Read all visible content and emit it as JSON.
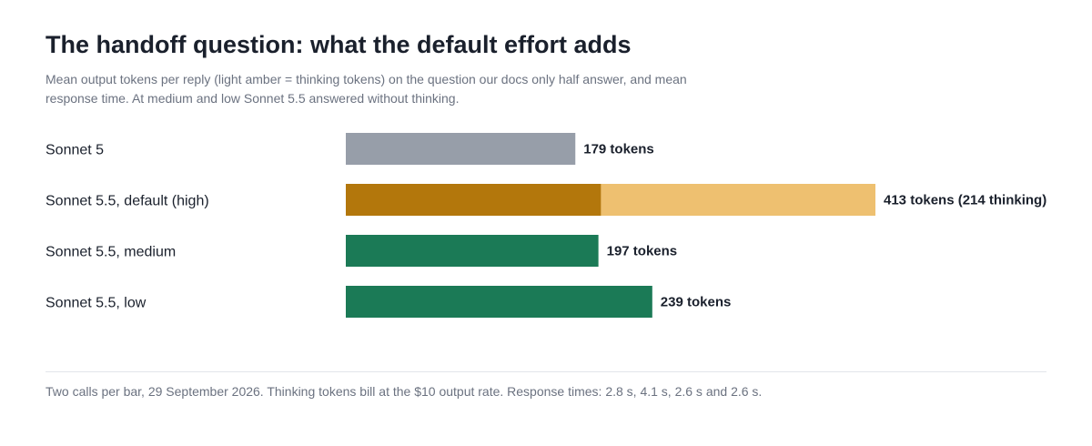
{
  "title": "The handoff question: what the default effort adds",
  "subtitle": "Mean output tokens per reply (light amber = thinking tokens) on the question our docs only half answer, and mean response time. At medium and low Sonnet 5.5 answered without thinking.",
  "footnote": "Two calls per bar, 29 September 2026. Thinking tokens bill at the $10 output rate. Response times: 2.8 s, 4.1 s, 2.6 s and 2.6 s.",
  "colors": {
    "sonnet5": "#979ea9",
    "default_output": "#b3770c",
    "default_thinking": "#eec070",
    "medium_low": "#1b7a56"
  },
  "chart_data": {
    "type": "bar",
    "orientation": "horizontal",
    "stacked": true,
    "categories": [
      "Sonnet 5",
      "Sonnet 5.5, default (high)",
      "Sonnet 5.5, medium",
      "Sonnet 5.5, low"
    ],
    "totals": [
      179,
      413,
      197,
      239
    ],
    "thinking": [
      0,
      214,
      0,
      0
    ],
    "value_labels": [
      "179 tokens",
      "413 tokens (214 thinking)",
      "197 tokens",
      "239 tokens"
    ],
    "xlim": [
      0,
      413
    ],
    "grid": false,
    "legend": "none"
  }
}
